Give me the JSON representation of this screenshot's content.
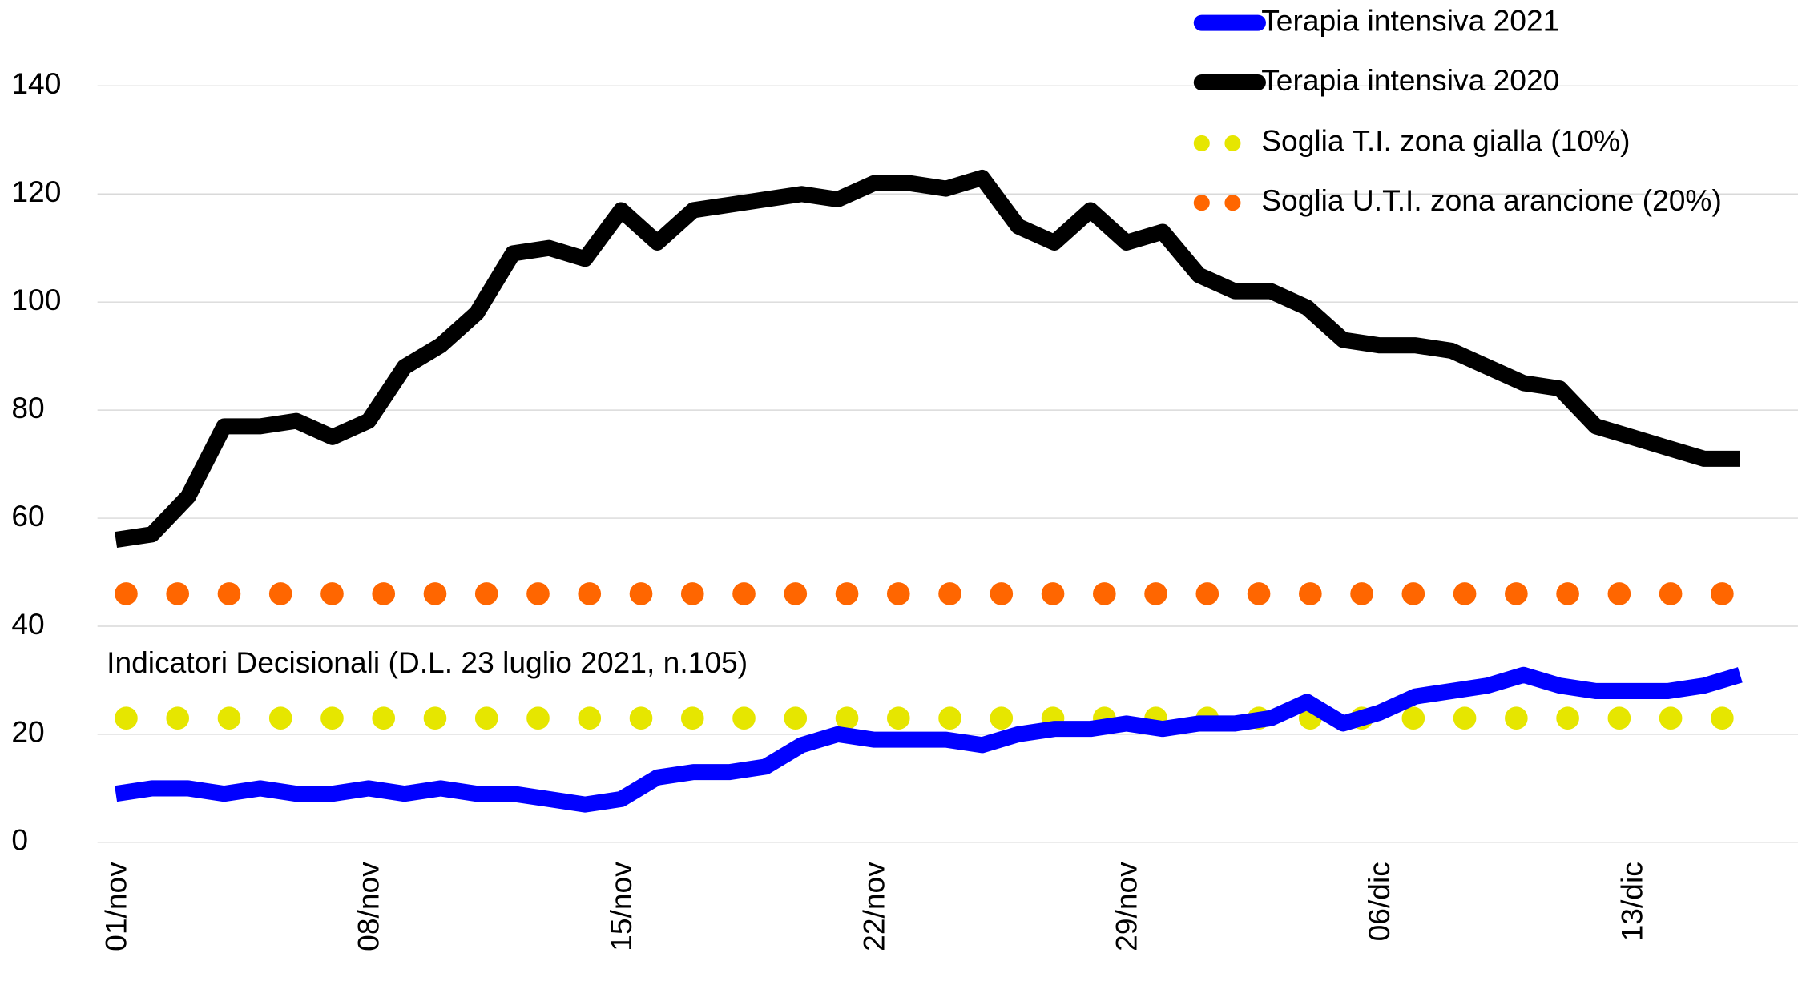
{
  "chart_data": {
    "type": "line",
    "categories": [
      "01/nov",
      null,
      null,
      null,
      null,
      null,
      null,
      "08/nov",
      null,
      null,
      null,
      null,
      null,
      null,
      "15/nov",
      null,
      null,
      null,
      null,
      null,
      null,
      "22/nov",
      null,
      null,
      null,
      null,
      null,
      null,
      "29/nov",
      null,
      null,
      null,
      null,
      null,
      null,
      "06/dic",
      null,
      null,
      null,
      null,
      null,
      null,
      "13/dic",
      null,
      null,
      null
    ],
    "series": [
      {
        "name": "Terapia intensiva 2021",
        "color": "#0000ff",
        "style": "solid",
        "values": [
          9,
          10,
          10,
          9,
          10,
          9,
          9,
          10,
          9,
          10,
          9,
          9,
          8,
          7,
          8,
          12,
          13,
          13,
          14,
          18,
          20,
          19,
          19,
          19,
          18,
          20,
          21,
          21,
          22,
          21,
          22,
          22,
          23,
          26,
          22,
          24,
          27,
          28,
          29,
          31,
          29,
          28,
          28,
          28,
          29,
          31
        ]
      },
      {
        "name": "Terapia intensiva 2020",
        "color": "#000000",
        "style": "solid",
        "values": [
          56,
          57,
          64,
          77,
          77,
          78,
          75,
          78,
          88,
          92,
          98,
          109,
          110,
          108,
          117,
          111,
          117,
          118,
          119,
          120,
          119,
          122,
          122,
          121,
          123,
          114,
          111,
          117,
          111,
          113,
          105,
          102,
          102,
          99,
          93,
          92,
          92,
          91,
          88,
          85,
          84,
          77,
          75,
          73,
          71,
          71
        ]
      },
      {
        "name": "Soglia T.I. zona gialla (10%)",
        "color": "#e6e600",
        "style": "dotted",
        "values": [
          23,
          23,
          23,
          23,
          23,
          23,
          23,
          23,
          23,
          23,
          23,
          23,
          23,
          23,
          23,
          23,
          23,
          23,
          23,
          23,
          23,
          23,
          23,
          23,
          23,
          23,
          23,
          23,
          23,
          23,
          23,
          23,
          23,
          23,
          23,
          23,
          23,
          23,
          23,
          23,
          23,
          23,
          23,
          23,
          23,
          23
        ]
      },
      {
        "name": "Soglia U.T.I. zona arancione (20%)",
        "color": "#ff6600",
        "style": "dotted",
        "values": [
          46,
          46,
          46,
          46,
          46,
          46,
          46,
          46,
          46,
          46,
          46,
          46,
          46,
          46,
          46,
          46,
          46,
          46,
          46,
          46,
          46,
          46,
          46,
          46,
          46,
          46,
          46,
          46,
          46,
          46,
          46,
          46,
          46,
          46,
          46,
          46,
          46,
          46,
          46,
          46,
          46,
          46,
          46,
          46,
          46,
          46
        ]
      }
    ],
    "annotation": "Indicatori Decisionali (D.L. 23 luglio 2021, n.105)",
    "ylim": [
      0,
      140
    ],
    "yticks": [
      0,
      20,
      40,
      60,
      80,
      100,
      120,
      140
    ],
    "grid": true,
    "legend": "top-right"
  }
}
